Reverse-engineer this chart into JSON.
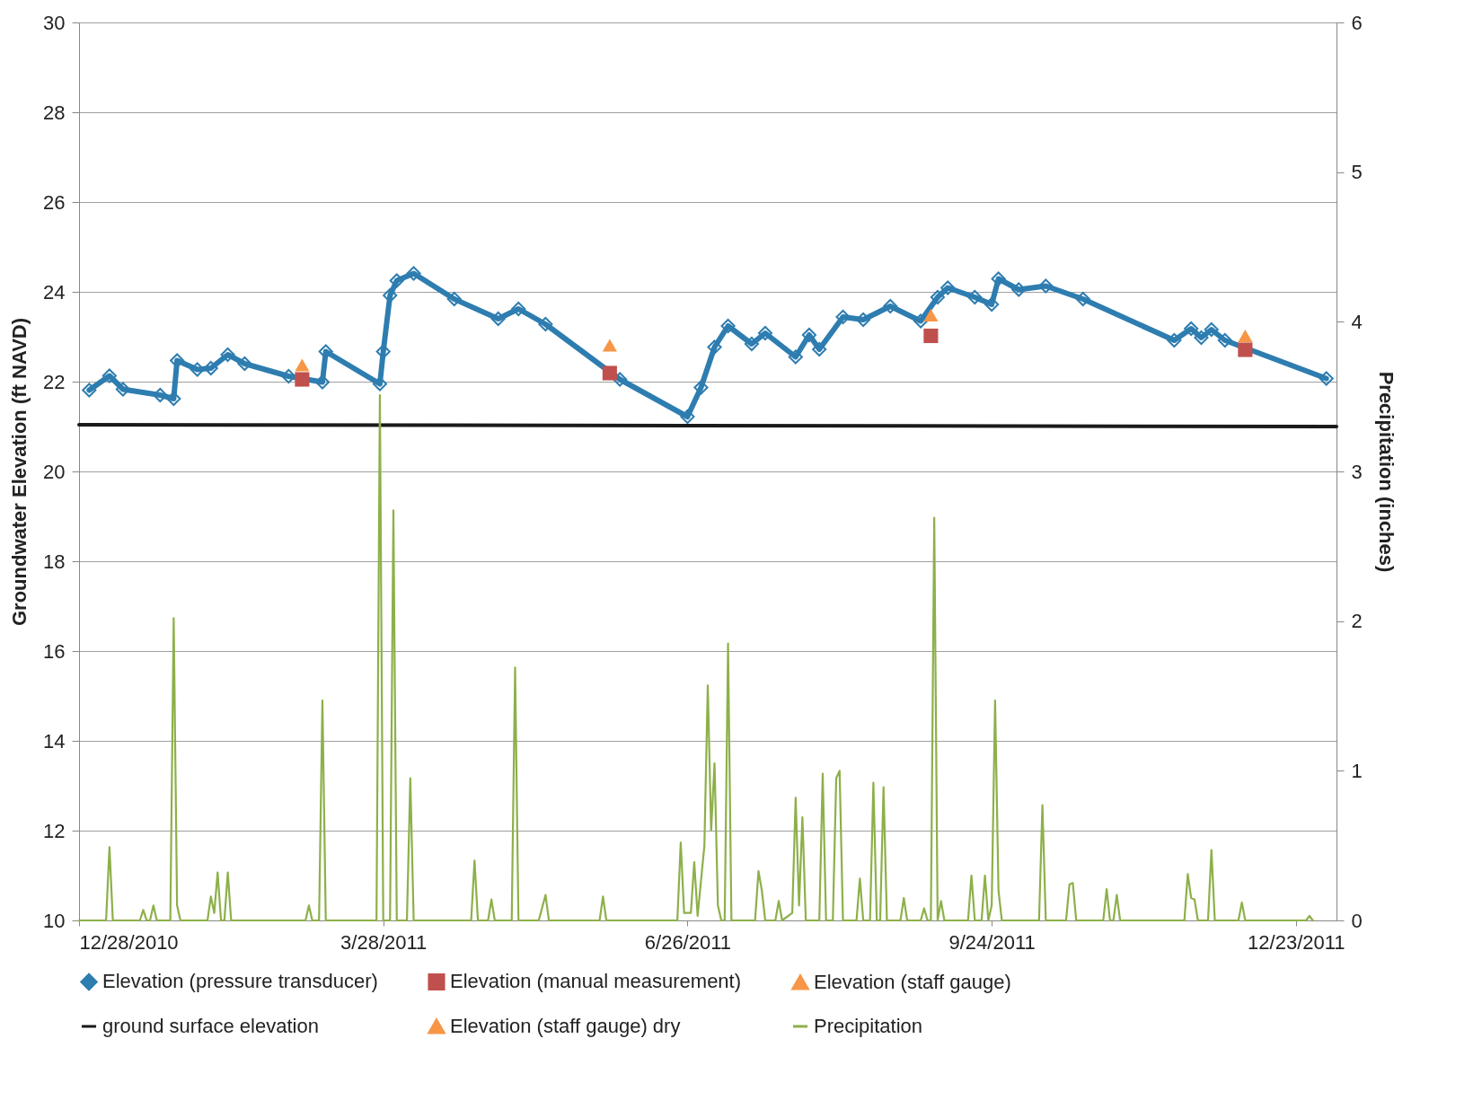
{
  "chart_data": {
    "type": "line",
    "xlabel": null,
    "ylabel": "Groundwater Elevation (ft NAVD)",
    "y2label": "Precipitation (inches)",
    "xlim": [
      "2010-12-28",
      "2012-01-04"
    ],
    "xticks": [
      {
        "value": "2010-12-28",
        "label": "12/28/2010"
      },
      {
        "value": "2011-03-28",
        "label": "3/28/2011"
      },
      {
        "value": "2011-06-26",
        "label": "6/26/2011"
      },
      {
        "value": "2011-09-24",
        "label": "9/24/2011"
      },
      {
        "value": "2011-12-23",
        "label": "12/23/2011"
      }
    ],
    "ylim": [
      10,
      30
    ],
    "yticks": [
      10,
      12,
      14,
      16,
      18,
      20,
      22,
      24,
      26,
      28,
      30
    ],
    "y2lim": [
      0,
      6
    ],
    "y2ticks": [
      0,
      1,
      2,
      3,
      4,
      5,
      6
    ],
    "grid": "y",
    "legend": "bottom",
    "series": [
      {
        "name": "Elevation (pressure transducer)",
        "marker": "diamond",
        "color": "#2e7db0",
        "x": [
          "2010-12-31",
          "2011-01-06",
          "2011-01-10",
          "2011-01-21",
          "2011-01-25",
          "2011-01-26",
          "2011-02-01",
          "2011-02-05",
          "2011-02-10",
          "2011-02-15",
          "2011-02-28",
          "2011-03-10",
          "2011-03-11",
          "2011-03-27",
          "2011-03-28",
          "2011-03-30",
          "2011-04-01",
          "2011-04-06",
          "2011-04-18",
          "2011-05-01",
          "2011-05-07",
          "2011-05-15",
          "2011-06-06",
          "2011-06-26",
          "2011-06-30",
          "2011-07-04",
          "2011-07-08",
          "2011-07-15",
          "2011-07-19",
          "2011-07-28",
          "2011-08-01",
          "2011-08-04",
          "2011-08-11",
          "2011-08-17",
          "2011-08-25",
          "2011-09-03",
          "2011-09-08",
          "2011-09-11",
          "2011-09-19",
          "2011-09-24",
          "2011-09-26",
          "2011-10-02",
          "2011-10-10",
          "2011-10-21",
          "2011-11-17",
          "2011-11-22",
          "2011-11-25",
          "2011-11-28",
          "2011-12-02",
          "2012-01-01"
        ],
        "values": [
          21.81,
          22.13,
          21.83,
          21.7,
          21.62,
          22.47,
          22.27,
          22.3,
          22.6,
          22.4,
          22.12,
          21.99,
          22.67,
          21.95,
          22.67,
          23.92,
          24.25,
          24.41,
          23.84,
          23.4,
          23.62,
          23.28,
          22.05,
          21.22,
          21.87,
          22.77,
          23.24,
          22.84,
          23.08,
          22.55,
          23.04,
          22.72,
          23.44,
          23.38,
          23.68,
          23.35,
          23.88,
          24.09,
          23.88,
          23.72,
          24.29,
          24.05,
          24.13,
          23.84,
          22.92,
          23.18,
          22.98,
          23.16,
          22.92,
          22.07
        ]
      },
      {
        "name": "Elevation (manual measurement)",
        "type": "scatter",
        "marker": "square",
        "color": "#c0504d",
        "x": [
          "2011-03-04",
          "2011-06-03",
          "2011-09-06",
          "2011-12-08"
        ],
        "values": [
          22.05,
          22.19,
          23.02,
          22.71
        ]
      },
      {
        "name": "Elevation (staff gauge)",
        "type": "scatter",
        "marker": "triangle",
        "color": "#f79646",
        "x": [
          "2011-03-04",
          "2011-06-03",
          "2011-09-06",
          "2011-12-08"
        ],
        "values": [
          22.37,
          22.81,
          23.48,
          23.02
        ]
      },
      {
        "name": "ground surface elevation",
        "marker": "none",
        "color": "#1a1a1a",
        "x": [
          "2010-12-28",
          "2012-01-04"
        ],
        "values": [
          21.04,
          21.0
        ]
      },
      {
        "name": "Elevation (staff gauge) dry",
        "type": "scatter",
        "marker": "triangle",
        "color": "#f79646"
      },
      {
        "name": "Precipitation",
        "marker": "none",
        "axis": "y2",
        "color": "#8db04a",
        "x": [
          "2010-12-28",
          "2011-01-05",
          "2011-01-06",
          "2011-01-07",
          "2011-01-15",
          "2011-01-16",
          "2011-01-17",
          "2011-01-18",
          "2011-01-19",
          "2011-01-20",
          "2011-01-24",
          "2011-01-25",
          "2011-01-26",
          "2011-01-27",
          "2011-02-04",
          "2011-02-05",
          "2011-02-06",
          "2011-02-07",
          "2011-02-08",
          "2011-02-09",
          "2011-02-10",
          "2011-02-11",
          "2011-03-05",
          "2011-03-06",
          "2011-03-07",
          "2011-03-09",
          "2011-03-10",
          "2011-03-11",
          "2011-03-26",
          "2011-03-27",
          "2011-03-28",
          "2011-03-30",
          "2011-03-31",
          "2011-04-01",
          "2011-04-04",
          "2011-04-05",
          "2011-04-06",
          "2011-04-23",
          "2011-04-24",
          "2011-04-25",
          "2011-04-28",
          "2011-04-29",
          "2011-04-30",
          "2011-05-05",
          "2011-05-06",
          "2011-05-07",
          "2011-05-13",
          "2011-05-15",
          "2011-05-16",
          "2011-05-31",
          "2011-06-01",
          "2011-06-02",
          "2011-06-23",
          "2011-06-24",
          "2011-06-25",
          "2011-06-27",
          "2011-06-28",
          "2011-06-29",
          "2011-07-01",
          "2011-07-02",
          "2011-07-03",
          "2011-07-04",
          "2011-07-05",
          "2011-07-06",
          "2011-07-07",
          "2011-07-08",
          "2011-07-09",
          "2011-07-16",
          "2011-07-17",
          "2011-07-18",
          "2011-07-19",
          "2011-07-22",
          "2011-07-23",
          "2011-07-24",
          "2011-07-27",
          "2011-07-28",
          "2011-07-29",
          "2011-07-30",
          "2011-07-31",
          "2011-08-04",
          "2011-08-05",
          "2011-08-06",
          "2011-08-08",
          "2011-08-09",
          "2011-08-10",
          "2011-08-11",
          "2011-08-15",
          "2011-08-16",
          "2011-08-17",
          "2011-08-19",
          "2011-08-20",
          "2011-08-21",
          "2011-08-22",
          "2011-08-23",
          "2011-08-24",
          "2011-08-28",
          "2011-08-29",
          "2011-08-30",
          "2011-09-03",
          "2011-09-04",
          "2011-09-05",
          "2011-09-06",
          "2011-09-07",
          "2011-09-08",
          "2011-09-09",
          "2011-09-10",
          "2011-09-17",
          "2011-09-18",
          "2011-09-19",
          "2011-09-21",
          "2011-09-22",
          "2011-09-23",
          "2011-09-24",
          "2011-09-25",
          "2011-09-26",
          "2011-09-27",
          "2011-10-08",
          "2011-10-09",
          "2011-10-10",
          "2011-10-16",
          "2011-10-17",
          "2011-10-18",
          "2011-10-19",
          "2011-10-27",
          "2011-10-28",
          "2011-10-29",
          "2011-10-30",
          "2011-10-31",
          "2011-11-01",
          "2011-11-20",
          "2011-11-21",
          "2011-11-22",
          "2011-11-23",
          "2011-11-24",
          "2011-11-27",
          "2011-11-28",
          "2011-11-29",
          "2011-12-06",
          "2011-12-07",
          "2011-12-08",
          "2011-12-26",
          "2011-12-27",
          "2011-12-28"
        ],
        "values": [
          0,
          0,
          0.49,
          0,
          0,
          0.07,
          0,
          0,
          0.1,
          0,
          0,
          2.02,
          0.1,
          0,
          0,
          0.16,
          0.05,
          0.32,
          0,
          0,
          0.32,
          0,
          0,
          0.1,
          0,
          0,
          1.47,
          0,
          0,
          3.51,
          0,
          0,
          2.74,
          0,
          0,
          0.95,
          0,
          0,
          0.4,
          0,
          0,
          0.14,
          0,
          0,
          1.69,
          0,
          0,
          0.17,
          0,
          0,
          0.16,
          0,
          0,
          0.52,
          0.05,
          0.05,
          0.39,
          0.03,
          0.5,
          1.57,
          0.6,
          1.05,
          0.1,
          0,
          0,
          1.85,
          0,
          0,
          0.33,
          0.2,
          0,
          0,
          0.13,
          0,
          0.05,
          0.82,
          0.1,
          0.69,
          0,
          0,
          0.98,
          0,
          0,
          0.95,
          1.0,
          0,
          0,
          0.28,
          0,
          0,
          0.92,
          0,
          0,
          0.89,
          0,
          0,
          0.15,
          0,
          0,
          0.08,
          0,
          0,
          2.69,
          0,
          0.13,
          0,
          0,
          0.3,
          0,
          0,
          0.3,
          0,
          0.1,
          1.47,
          0.2,
          0,
          0,
          0.77,
          0,
          0,
          0.24,
          0.25,
          0,
          0,
          0.21,
          0,
          0,
          0.17,
          0,
          0,
          0.31,
          0.15,
          0.14,
          0,
          0,
          0.47,
          0,
          0,
          0.12,
          0,
          0,
          0.03,
          0
        ]
      }
    ]
  }
}
